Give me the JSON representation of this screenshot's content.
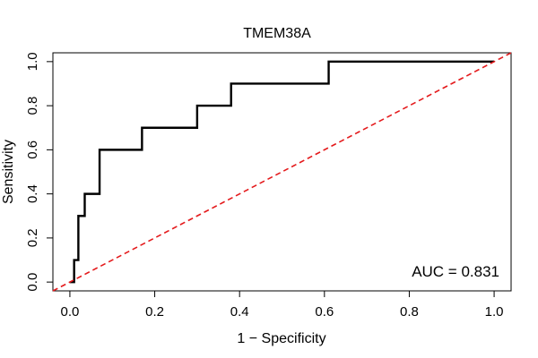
{
  "chart_data": {
    "type": "line",
    "title": "TMEM38A",
    "xlabel": "1 − Specificity",
    "ylabel": "Sensitivity",
    "xlim": [
      -0.04,
      1.04
    ],
    "ylim": [
      -0.04,
      1.04
    ],
    "xticks": [
      0.0,
      0.2,
      0.4,
      0.6,
      0.8,
      1.0
    ],
    "yticks": [
      0.0,
      0.2,
      0.4,
      0.6,
      0.8,
      1.0
    ],
    "xtick_labels": [
      "0.0",
      "0.2",
      "0.4",
      "0.6",
      "0.8",
      "1.0"
    ],
    "ytick_labels": [
      "0.0",
      "0.2",
      "0.4",
      "0.6",
      "0.8",
      "1.0"
    ],
    "annotation": "AUC = 0.831",
    "series": [
      {
        "name": "ROC curve",
        "color": "#000000",
        "style": "solid",
        "points": [
          [
            0.0,
            0.0
          ],
          [
            0.01,
            0.0
          ],
          [
            0.01,
            0.1
          ],
          [
            0.02,
            0.1
          ],
          [
            0.02,
            0.3
          ],
          [
            0.035,
            0.3
          ],
          [
            0.035,
            0.4
          ],
          [
            0.07,
            0.4
          ],
          [
            0.07,
            0.6
          ],
          [
            0.17,
            0.6
          ],
          [
            0.17,
            0.7
          ],
          [
            0.3,
            0.7
          ],
          [
            0.3,
            0.8
          ],
          [
            0.38,
            0.8
          ],
          [
            0.38,
            0.9
          ],
          [
            0.61,
            0.9
          ],
          [
            0.61,
            1.0
          ],
          [
            1.0,
            1.0
          ]
        ]
      },
      {
        "name": "Reference diagonal",
        "color": "#e41a1c",
        "style": "dashed",
        "points": [
          [
            -0.04,
            -0.04
          ],
          [
            1.04,
            1.04
          ]
        ]
      }
    ]
  }
}
